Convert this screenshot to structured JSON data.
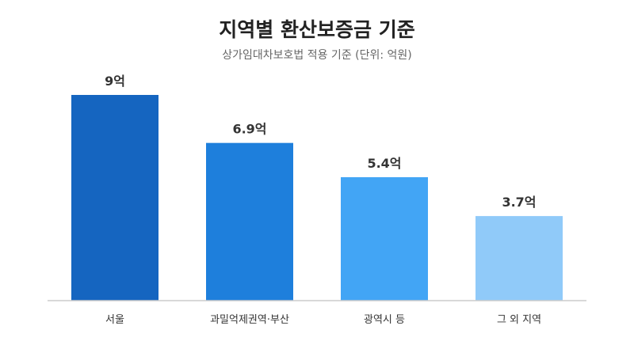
{
  "chart_data": {
    "type": "bar",
    "title": "지역별 환산보증금 기준",
    "subtitle": "상가임대차보호법 적용 기준 (단위: 억원)",
    "categories": [
      "서울",
      "과밀억제권역·부산",
      "광역시 등",
      "그 외 지역"
    ],
    "values": [
      9,
      6.9,
      5.4,
      3.7
    ],
    "value_labels": [
      "9억",
      "6.9억",
      "5.4억",
      "3.7억"
    ],
    "colors": [
      "#1565c0",
      "#1e7fdc",
      "#42a5f5",
      "#90caf9"
    ],
    "ylim": [
      0,
      9
    ],
    "grid": false,
    "legend": "none"
  }
}
